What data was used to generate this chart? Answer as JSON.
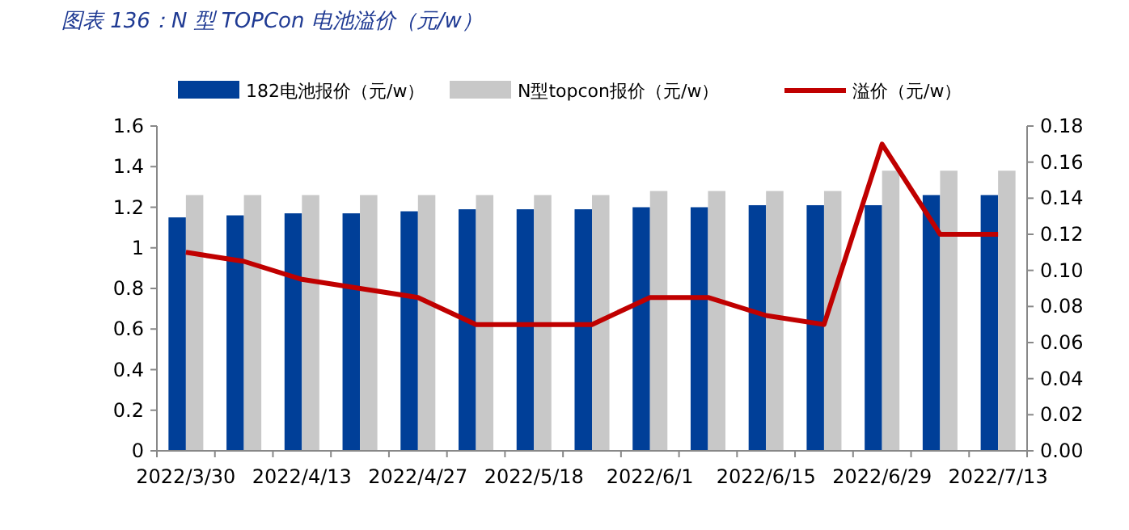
{
  "chart_data": {
    "type": "bar",
    "title": "图表 136：N 型 TOPCon 电池溢价（元/w）",
    "categories": [
      "2022/3/30",
      null,
      "2022/4/13",
      null,
      "2022/4/27",
      null,
      "2022/5/18",
      null,
      "2022/6/1",
      null,
      "2022/6/15",
      null,
      "2022/6/29",
      null,
      "2022/7/13"
    ],
    "series": [
      {
        "name": "182电池报价（元/w）",
        "color": "#003f98",
        "values": [
          1.15,
          1.16,
          1.17,
          1.17,
          1.18,
          1.19,
          1.19,
          1.19,
          1.2,
          1.2,
          1.21,
          1.21,
          1.21,
          1.26,
          1.26
        ]
      },
      {
        "name": "N型topcon报价（元/w）",
        "color": "#c8c8c8",
        "values": [
          1.26,
          1.26,
          1.26,
          1.26,
          1.26,
          1.26,
          1.26,
          1.26,
          1.28,
          1.28,
          1.28,
          1.28,
          1.38,
          1.38,
          1.38
        ]
      },
      {
        "name": "溢价（元/w）",
        "type": "line",
        "axis": "y2",
        "color": "#c00000",
        "values": [
          0.11,
          0.105,
          0.095,
          0.09,
          0.085,
          0.07,
          0.07,
          0.07,
          0.085,
          0.085,
          0.075,
          0.07,
          0.17,
          0.12,
          0.12
        ]
      }
    ],
    "ylim": [
      0,
      1.6
    ],
    "yticks": [
      0,
      0.2,
      0.4,
      0.6,
      0.8,
      1,
      1.2,
      1.4,
      1.6
    ],
    "y2lim": [
      0,
      0.18
    ],
    "y2ticks": [
      {
        "value": 0,
        "label": "0.00"
      },
      {
        "value": 0.02,
        "label": "0.02"
      },
      {
        "value": 0.04,
        "label": "0.04"
      },
      {
        "value": 0.06,
        "label": "0.06"
      },
      {
        "value": 0.08,
        "label": "0.08"
      },
      {
        "value": 0.1,
        "label": "0.10"
      },
      {
        "value": 0.12,
        "label": "0.12"
      },
      {
        "value": 0.14,
        "label": "0.14"
      },
      {
        "value": 0.16,
        "label": "0.16"
      },
      {
        "value": 0.18,
        "label": "0.18"
      }
    ],
    "legend": "top",
    "grid": false
  }
}
